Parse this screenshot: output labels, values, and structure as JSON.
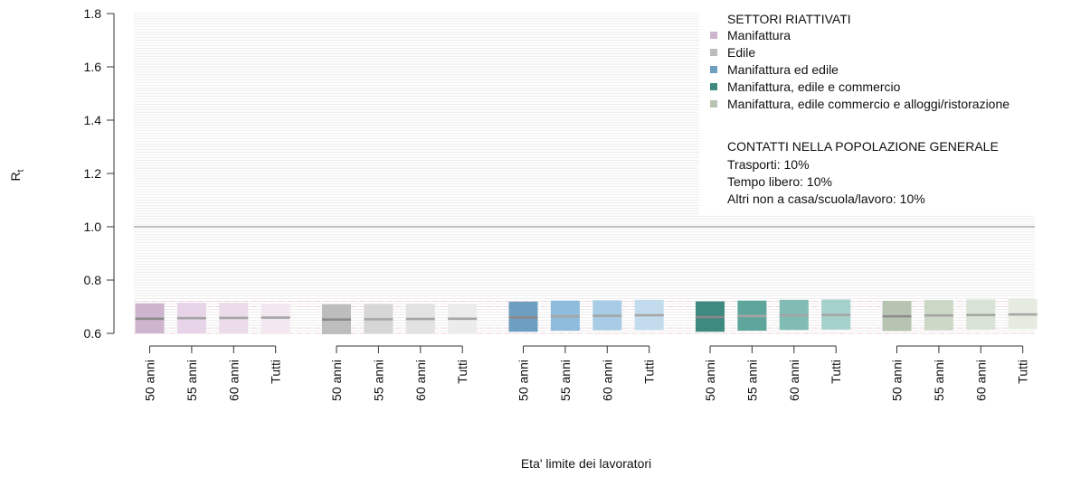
{
  "chart_data": {
    "type": "bar",
    "title": "",
    "xlabel": "Eta' limite dei lavoratori",
    "ylabel_main": "R",
    "ylabel_sub": "t",
    "ylim": [
      0.6,
      1.8
    ],
    "yticks": [
      "0.6",
      "0.8",
      "1.0",
      "1.2",
      "1.4",
      "1.6",
      "1.8"
    ],
    "reference_line": 1.0,
    "grid": "horizontal",
    "legend_position": "top-right",
    "legend_title": "SETTORI RIATTIVATI",
    "info_title": "CONTATTI NELLA POPOLAZIONE GENERALE",
    "info_lines": [
      "Trasporti: 10%",
      "Tempo libero: 10%",
      "Altri non a casa/scuola/lavoro: 10%"
    ],
    "categories": [
      "50 anni",
      "55 anni",
      "60 anni",
      "Tutti"
    ],
    "series": [
      {
        "name": "Manifattura",
        "colors": [
          "#cdb5cd",
          "#e8d4e8",
          "#ecdcea",
          "#f3e8f1"
        ],
        "median": [
          0.655,
          0.657,
          0.658,
          0.659
        ],
        "low": [
          0.6,
          0.6,
          0.6,
          0.6
        ],
        "high": [
          0.713,
          0.715,
          0.715,
          0.712
        ]
      },
      {
        "name": "Edile",
        "colors": [
          "#bdbdbd",
          "#d6d6d6",
          "#e2e2e2",
          "#ececec"
        ],
        "median": [
          0.652,
          0.653,
          0.654,
          0.655
        ],
        "low": [
          0.597,
          0.598,
          0.598,
          0.599
        ],
        "high": [
          0.709,
          0.71,
          0.71,
          0.711
        ]
      },
      {
        "name": "Manifattura ed edile",
        "colors": [
          "#6e9fc1",
          "#8fbcdc",
          "#a8cce5",
          "#c2dcee"
        ],
        "median": [
          0.66,
          0.664,
          0.666,
          0.668
        ],
        "low": [
          0.606,
          0.61,
          0.612,
          0.613
        ],
        "high": [
          0.719,
          0.723,
          0.724,
          0.726
        ]
      },
      {
        "name": "Manifattura, edile e commercio",
        "colors": [
          "#3e8a80",
          "#5ea69c",
          "#80bcb4",
          "#a4d1cb"
        ],
        "median": [
          0.661,
          0.665,
          0.667,
          0.669
        ],
        "low": [
          0.606,
          0.61,
          0.613,
          0.614
        ],
        "high": [
          0.72,
          0.723,
          0.726,
          0.727
        ]
      },
      {
        "name": "Manifattura, edile commercio e alloggi/ristorazione",
        "colors": [
          "#b7c4b1",
          "#ccd8c6",
          "#d9e3d5",
          "#e5ecdf"
        ],
        "median": [
          0.664,
          0.667,
          0.669,
          0.671
        ],
        "low": [
          0.609,
          0.612,
          0.614,
          0.616
        ],
        "high": [
          0.722,
          0.725,
          0.727,
          0.729
        ]
      }
    ]
  }
}
